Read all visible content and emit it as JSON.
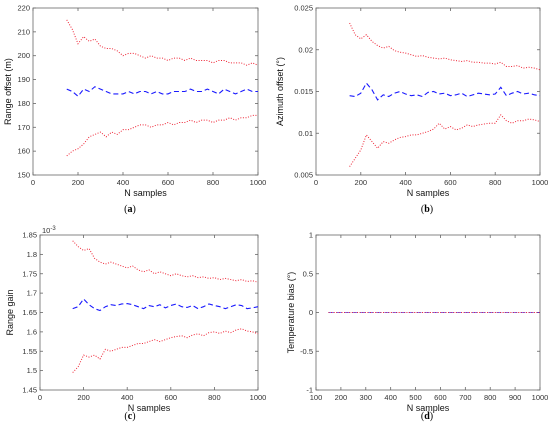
{
  "chart_data": [
    {
      "id": "a",
      "type": "line",
      "sublabel": "(a)",
      "xlabel": "N samples",
      "ylabel": "Range offset (m)",
      "exponent": "",
      "xlim": [
        0,
        1000
      ],
      "ylim": [
        150,
        220
      ],
      "xticks": [
        "0",
        "200",
        "400",
        "600",
        "800",
        "1000"
      ],
      "yticks": [
        "150",
        "160",
        "170",
        "180",
        "190",
        "200",
        "210",
        "220"
      ],
      "xtickvals": [
        0,
        200,
        400,
        600,
        800,
        1000
      ],
      "ytickvals": [
        150,
        160,
        170,
        180,
        190,
        200,
        210,
        220
      ],
      "x": [
        150,
        175,
        200,
        225,
        250,
        275,
        300,
        325,
        350,
        375,
        400,
        425,
        450,
        475,
        500,
        525,
        550,
        575,
        600,
        625,
        650,
        675,
        700,
        725,
        750,
        775,
        800,
        825,
        850,
        875,
        900,
        925,
        950,
        975,
        1000
      ],
      "series": [
        {
          "style": "upper",
          "values": [
            215,
            211,
            205,
            208,
            206,
            207,
            204,
            203,
            203,
            202,
            200,
            201,
            201,
            200,
            199,
            200,
            199,
            199,
            198,
            199,
            199,
            198,
            199,
            198,
            198,
            198,
            197,
            198,
            198,
            197,
            197,
            197,
            196,
            197,
            196
          ]
        },
        {
          "style": "mean",
          "values": [
            186,
            185,
            183,
            186,
            185,
            187,
            186,
            185,
            184,
            184,
            184,
            185,
            184,
            185,
            185,
            184,
            185,
            184,
            184,
            185,
            185,
            185,
            186,
            185,
            185,
            186,
            185,
            184,
            186,
            185,
            184,
            185,
            186,
            185,
            185
          ]
        },
        {
          "style": "lower",
          "values": [
            158,
            160,
            161,
            163,
            166,
            167,
            168,
            166,
            168,
            167,
            169,
            169,
            170,
            171,
            171,
            170,
            171,
            171,
            172,
            171,
            172,
            172,
            173,
            172,
            173,
            173,
            172,
            173,
            173,
            174,
            173,
            174,
            174,
            175,
            175
          ]
        }
      ]
    },
    {
      "id": "b",
      "type": "line",
      "sublabel": "(b)",
      "xlabel": "N samples",
      "ylabel": "Azimuth offset (°)",
      "exponent": "",
      "xlim": [
        0,
        1000
      ],
      "ylim": [
        0.005,
        0.025
      ],
      "xticks": [
        "0",
        "200",
        "400",
        "600",
        "800",
        "1000"
      ],
      "yticks": [
        "0.005",
        "0.01",
        "0.015",
        "0.02",
        "0.025"
      ],
      "xtickvals": [
        0,
        200,
        400,
        600,
        800,
        1000
      ],
      "ytickvals": [
        0.005,
        0.01,
        0.015,
        0.02,
        0.025
      ],
      "x": [
        150,
        175,
        200,
        225,
        250,
        275,
        300,
        325,
        350,
        375,
        400,
        425,
        450,
        475,
        500,
        525,
        550,
        575,
        600,
        625,
        650,
        675,
        700,
        725,
        750,
        775,
        800,
        825,
        850,
        875,
        900,
        925,
        950,
        975,
        1000
      ],
      "series": [
        {
          "style": "upper",
          "values": [
            0.0232,
            0.0218,
            0.0213,
            0.0218,
            0.021,
            0.0205,
            0.0202,
            0.0204,
            0.0199,
            0.0197,
            0.0196,
            0.0194,
            0.0192,
            0.0193,
            0.0191,
            0.019,
            0.0189,
            0.019,
            0.0188,
            0.0187,
            0.0186,
            0.0187,
            0.0185,
            0.0185,
            0.0184,
            0.0184,
            0.0183,
            0.0185,
            0.018,
            0.018,
            0.0181,
            0.0178,
            0.0179,
            0.0178,
            0.0176
          ]
        },
        {
          "style": "mean",
          "values": [
            0.0145,
            0.0144,
            0.0148,
            0.016,
            0.0152,
            0.014,
            0.0146,
            0.0144,
            0.0148,
            0.015,
            0.0147,
            0.0145,
            0.0146,
            0.0144,
            0.0149,
            0.015,
            0.0147,
            0.0148,
            0.0145,
            0.0146,
            0.0148,
            0.0144,
            0.0146,
            0.0148,
            0.0147,
            0.0146,
            0.0147,
            0.0155,
            0.0145,
            0.0148,
            0.015,
            0.0147,
            0.0148,
            0.0146,
            0.0145
          ]
        },
        {
          "style": "lower",
          "values": [
            0.006,
            0.007,
            0.008,
            0.0098,
            0.009,
            0.0082,
            0.009,
            0.0088,
            0.0092,
            0.0095,
            0.0096,
            0.0098,
            0.0098,
            0.01,
            0.0102,
            0.0105,
            0.0112,
            0.0105,
            0.0108,
            0.0104,
            0.0106,
            0.011,
            0.0108,
            0.011,
            0.0111,
            0.0112,
            0.0112,
            0.0122,
            0.0115,
            0.0112,
            0.0115,
            0.0115,
            0.0117,
            0.0116,
            0.0114
          ]
        }
      ]
    },
    {
      "id": "c",
      "type": "line",
      "sublabel": "(c)",
      "xlabel": "N samples",
      "ylabel": "Range gain",
      "exponent": "10",
      "exponent_power": "-3",
      "xlim": [
        0,
        1000
      ],
      "ylim": [
        1.45,
        1.85
      ],
      "xticks": [
        "0",
        "200",
        "400",
        "600",
        "800",
        "1000"
      ],
      "yticks": [
        "1.45",
        "1.5",
        "1.55",
        "1.6",
        "1.65",
        "1.7",
        "1.75",
        "1.8",
        "1.85"
      ],
      "xtickvals": [
        0,
        200,
        400,
        600,
        800,
        1000
      ],
      "ytickvals": [
        1.45,
        1.5,
        1.55,
        1.6,
        1.65,
        1.7,
        1.75,
        1.8,
        1.85
      ],
      "x": [
        150,
        175,
        200,
        225,
        250,
        275,
        300,
        325,
        350,
        375,
        400,
        425,
        450,
        475,
        500,
        525,
        550,
        575,
        600,
        625,
        650,
        675,
        700,
        725,
        750,
        775,
        800,
        825,
        850,
        875,
        900,
        925,
        950,
        975,
        1000
      ],
      "series": [
        {
          "style": "upper",
          "values": [
            1.835,
            1.82,
            1.81,
            1.815,
            1.79,
            1.78,
            1.775,
            1.78,
            1.775,
            1.77,
            1.765,
            1.77,
            1.76,
            1.755,
            1.76,
            1.75,
            1.755,
            1.75,
            1.745,
            1.75,
            1.745,
            1.742,
            1.745,
            1.74,
            1.742,
            1.738,
            1.74,
            1.735,
            1.738,
            1.735,
            1.732,
            1.735,
            1.73,
            1.732,
            1.728
          ]
        },
        {
          "style": "mean",
          "values": [
            1.66,
            1.665,
            1.685,
            1.67,
            1.66,
            1.655,
            1.665,
            1.67,
            1.668,
            1.672,
            1.673,
            1.67,
            1.665,
            1.66,
            1.668,
            1.665,
            1.67,
            1.662,
            1.668,
            1.672,
            1.665,
            1.663,
            1.668,
            1.66,
            1.665,
            1.672,
            1.668,
            1.665,
            1.66,
            1.665,
            1.67,
            1.668,
            1.66,
            1.662,
            1.665
          ]
        },
        {
          "style": "lower",
          "values": [
            1.495,
            1.51,
            1.54,
            1.535,
            1.54,
            1.53,
            1.555,
            1.55,
            1.555,
            1.56,
            1.56,
            1.565,
            1.57,
            1.57,
            1.575,
            1.58,
            1.575,
            1.58,
            1.585,
            1.588,
            1.59,
            1.585,
            1.592,
            1.595,
            1.59,
            1.598,
            1.6,
            1.596,
            1.602,
            1.598,
            1.605,
            1.608,
            1.602,
            1.6,
            1.595
          ]
        }
      ]
    },
    {
      "id": "d",
      "type": "line",
      "sublabel": "(d)",
      "xlabel": "N samples",
      "ylabel": "Temperature bias (°)",
      "exponent": "",
      "xlim": [
        100,
        1000
      ],
      "ylim": [
        -1,
        1
      ],
      "xticks": [
        "100",
        "200",
        "300",
        "400",
        "500",
        "600",
        "700",
        "800",
        "900",
        "1000"
      ],
      "yticks": [
        "-1",
        "-0.5",
        "0",
        "0.5",
        "1"
      ],
      "xtickvals": [
        100,
        200,
        300,
        400,
        500,
        600,
        700,
        800,
        900,
        1000
      ],
      "ytickvals": [
        -1,
        -0.5,
        0,
        0.5,
        1
      ],
      "x": [
        150,
        1000
      ],
      "series": [
        {
          "style": "upper",
          "values": [
            0,
            0
          ]
        },
        {
          "style": "mean",
          "values": [
            0,
            0
          ]
        },
        {
          "style": "lower",
          "values": [
            0,
            0
          ]
        }
      ]
    }
  ],
  "colors": {
    "mean": "#1a1aff",
    "bounds": "#ee2233",
    "axis": "#666666"
  }
}
